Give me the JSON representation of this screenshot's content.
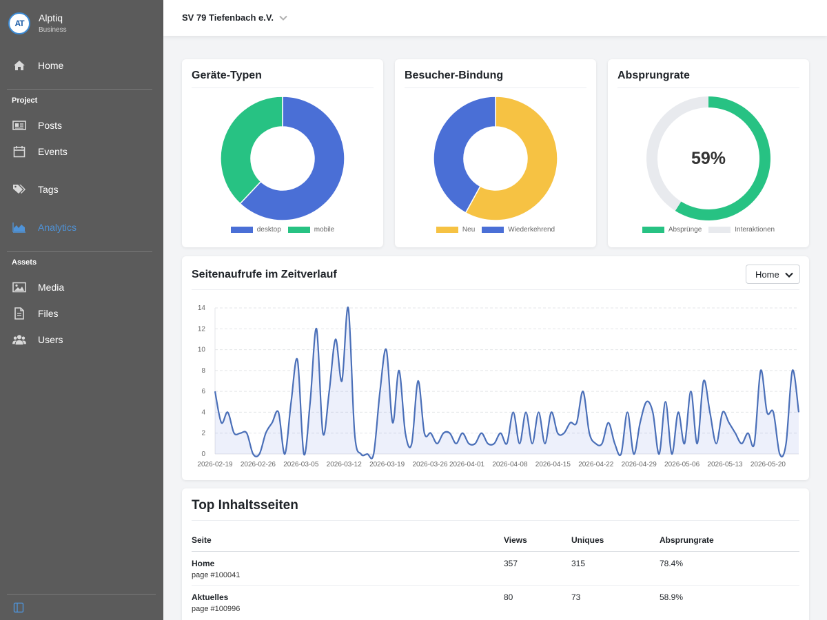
{
  "brand": {
    "name": "Alptiq",
    "sub": "Business",
    "logo_text": "AT"
  },
  "sidebar": {
    "home": "Home",
    "sections": [
      {
        "label": "Project",
        "items": [
          "Posts",
          "Events",
          "Tags",
          "Analytics"
        ]
      },
      {
        "label": "Assets",
        "items": [
          "Media",
          "Files",
          "Users"
        ]
      }
    ],
    "active_item": "Analytics"
  },
  "header": {
    "org_name": "SV 79 Tiefenbach e.V."
  },
  "colors": {
    "blue": "#4a6fd6",
    "green": "#27c283",
    "yellow": "#f6c243",
    "track": "#e8eaee",
    "active": "#4f93d8"
  },
  "cards": {
    "devices": {
      "title": "Geräte-Typen",
      "chart_data": {
        "type": "pie",
        "donut": true,
        "labels": [
          "desktop",
          "mobile"
        ],
        "values": [
          62,
          38
        ],
        "colors": [
          "#4a6fd6",
          "#27c283"
        ]
      }
    },
    "retention": {
      "title": "Besucher-Bindung",
      "chart_data": {
        "type": "pie",
        "donut": true,
        "labels": [
          "Neu",
          "Wiederkehrend"
        ],
        "values": [
          58,
          42
        ],
        "colors": [
          "#f6c243",
          "#4a6fd6"
        ]
      }
    },
    "bounce": {
      "title": "Absprungrate",
      "value_label": "59%",
      "chart_data": {
        "type": "pie",
        "donut": true,
        "labels": [
          "Absprünge",
          "Interaktionen"
        ],
        "values": [
          59,
          41
        ],
        "colors": [
          "#27c283",
          "#e8eaee"
        ]
      }
    }
  },
  "timeline": {
    "title": "Seitenaufrufe im Zeitverlauf",
    "select_value": "Home",
    "chart_data": {
      "type": "area",
      "ylim": [
        0,
        14
      ],
      "yticks": [
        0,
        2,
        4,
        6,
        8,
        10,
        12,
        14
      ],
      "xtick_labels": [
        "2026-02-19",
        "2026-02-26",
        "2026-03-05",
        "2026-03-12",
        "2026-03-19",
        "2026-03-26",
        "2026-04-01",
        "2026-04-08",
        "2026-04-15",
        "2026-04-22",
        "2026-04-29",
        "2026-05-06",
        "2026-05-13",
        "2026-05-20"
      ],
      "x_start": "2026-02-19",
      "x_end": "2026-05-25",
      "values": [
        6,
        3,
        4,
        2,
        2,
        2,
        0,
        0,
        2,
        3,
        4,
        0,
        5,
        9,
        0,
        5,
        12,
        2,
        6,
        11,
        7,
        14,
        2,
        0,
        0,
        0,
        6,
        10,
        3,
        8,
        2,
        1,
        7,
        2,
        2,
        1,
        2,
        2,
        1,
        2,
        1,
        1,
        2,
        1,
        1,
        2,
        1,
        4,
        1,
        4,
        1,
        4,
        1,
        4,
        2,
        2,
        3,
        3,
        6,
        2,
        1,
        1,
        3,
        1,
        0,
        4,
        0,
        3,
        5,
        4,
        0,
        5,
        0,
        4,
        1,
        6,
        1,
        7,
        4,
        1,
        4,
        3,
        2,
        1,
        2,
        1,
        8,
        4,
        4,
        0,
        1,
        8,
        4
      ]
    }
  },
  "table": {
    "title": "Top Inhaltsseiten",
    "columns": [
      "Seite",
      "Views",
      "Uniques",
      "Absprungrate"
    ],
    "rows": [
      {
        "title": "Home",
        "sub": "page #100041",
        "views": "357",
        "uniques": "315",
        "bounce": "78.4%"
      },
      {
        "title": "Aktuelles",
        "sub": "page #100996",
        "views": "80",
        "uniques": "73",
        "bounce": "58.9%"
      }
    ]
  }
}
